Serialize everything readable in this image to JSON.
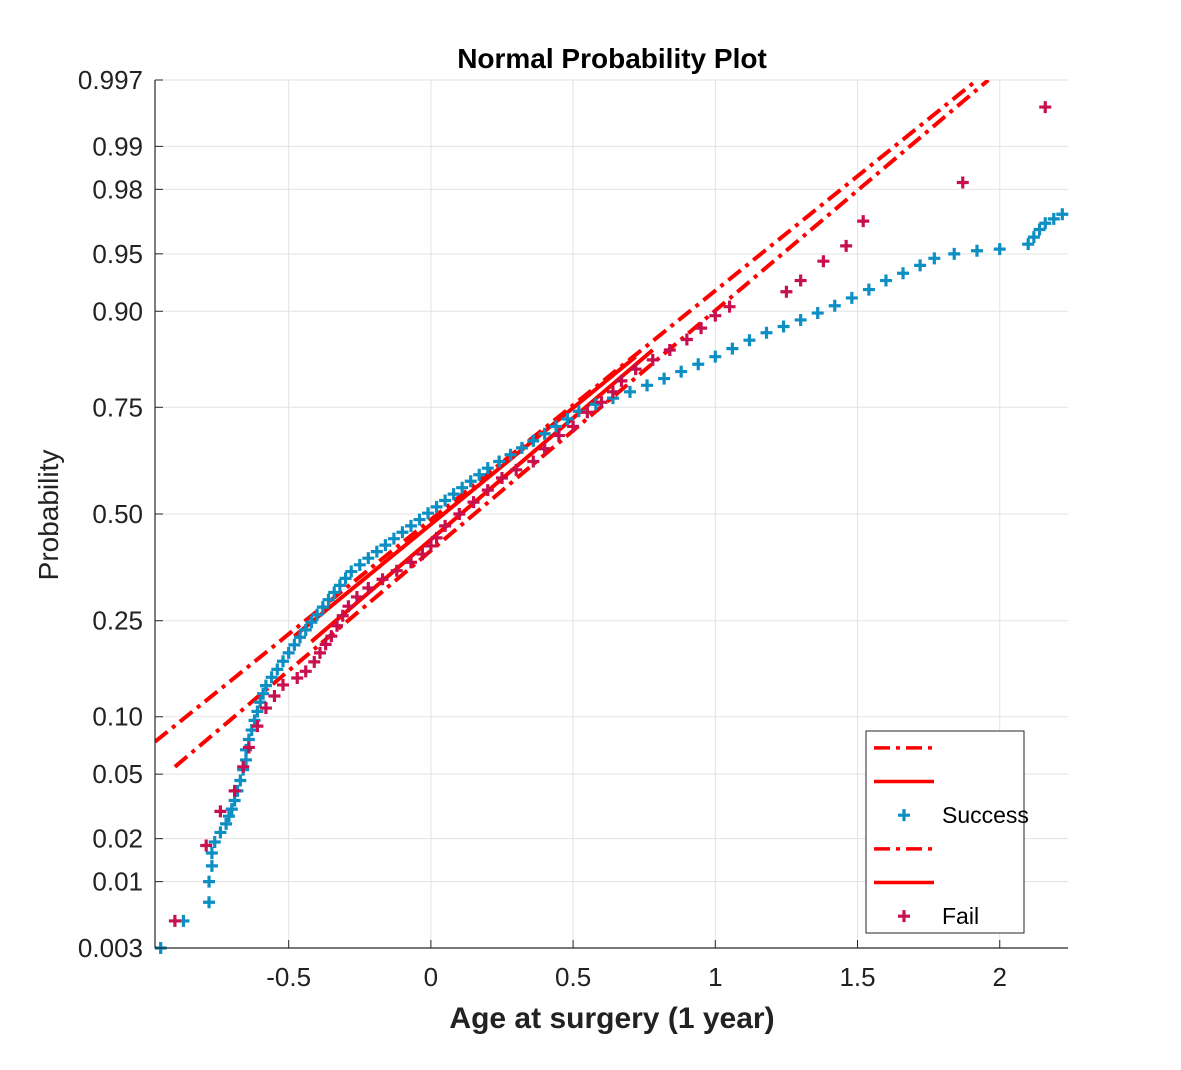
{
  "chart_data": {
    "type": "scatter",
    "title": "Normal Probability Plot",
    "xlabel": "Age at surgery (1 year)",
    "ylabel": "Probability",
    "xlim": [
      -0.97,
      2.24
    ],
    "ylim": [
      0.003,
      0.997
    ],
    "y_scale": "normal-probability",
    "grid": true,
    "legend_position": "bottom-right",
    "x_ticks": [
      -0.5,
      0,
      0.5,
      1,
      1.5,
      2
    ],
    "x_tick_labels": [
      "-0.5",
      "0",
      "0.5",
      "1",
      "1.5",
      "2"
    ],
    "y_ticks": [
      0.003,
      0.01,
      0.02,
      0.05,
      0.1,
      0.25,
      0.5,
      0.75,
      0.9,
      0.95,
      0.98,
      0.99,
      0.997
    ],
    "y_tick_labels": [
      "0.003",
      "0.01",
      "0.02",
      "0.05",
      "0.10",
      "0.25",
      "0.50",
      "0.75",
      "0.90",
      "0.95",
      "0.98",
      "0.99",
      "0.997"
    ],
    "colors": {
      "success": "#0e8fc4",
      "fail": "#c8104f",
      "fit": "#ff0000"
    },
    "series": [
      {
        "name": "Success",
        "marker": "plus",
        "color": "#0e8fc4",
        "points": [
          [
            -0.95,
            0.003
          ],
          [
            -0.87,
            0.005
          ],
          [
            -0.78,
            0.007
          ],
          [
            -0.78,
            0.01
          ],
          [
            -0.77,
            0.013
          ],
          [
            -0.77,
            0.016
          ],
          [
            -0.76,
            0.019
          ],
          [
            -0.74,
            0.022
          ],
          [
            -0.72,
            0.025
          ],
          [
            -0.71,
            0.028
          ],
          [
            -0.7,
            0.031
          ],
          [
            -0.69,
            0.035
          ],
          [
            -0.68,
            0.04
          ],
          [
            -0.67,
            0.046
          ],
          [
            -0.66,
            0.053
          ],
          [
            -0.65,
            0.06
          ],
          [
            -0.65,
            0.068
          ],
          [
            -0.64,
            0.077
          ],
          [
            -0.63,
            0.086
          ],
          [
            -0.62,
            0.096
          ],
          [
            -0.61,
            0.106
          ],
          [
            -0.6,
            0.117
          ],
          [
            -0.59,
            0.128
          ],
          [
            -0.58,
            0.139
          ],
          [
            -0.56,
            0.151
          ],
          [
            -0.54,
            0.163
          ],
          [
            -0.52,
            0.176
          ],
          [
            -0.5,
            0.19
          ],
          [
            -0.48,
            0.204
          ],
          [
            -0.46,
            0.218
          ],
          [
            -0.44,
            0.232
          ],
          [
            -0.42,
            0.247
          ],
          [
            -0.4,
            0.262
          ],
          [
            -0.38,
            0.278
          ],
          [
            -0.36,
            0.294
          ],
          [
            -0.34,
            0.31
          ],
          [
            -0.32,
            0.326
          ],
          [
            -0.3,
            0.342
          ],
          [
            -0.28,
            0.358
          ],
          [
            -0.25,
            0.374
          ],
          [
            -0.22,
            0.39
          ],
          [
            -0.19,
            0.406
          ],
          [
            -0.16,
            0.422
          ],
          [
            -0.13,
            0.438
          ],
          [
            -0.1,
            0.454
          ],
          [
            -0.07,
            0.47
          ],
          [
            -0.04,
            0.486
          ],
          [
            -0.01,
            0.502
          ],
          [
            0.02,
            0.518
          ],
          [
            0.05,
            0.534
          ],
          [
            0.08,
            0.55
          ],
          [
            0.11,
            0.566
          ],
          [
            0.14,
            0.582
          ],
          [
            0.17,
            0.598
          ],
          [
            0.2,
            0.614
          ],
          [
            0.24,
            0.63
          ],
          [
            0.28,
            0.646
          ],
          [
            0.32,
            0.662
          ],
          [
            0.36,
            0.678
          ],
          [
            0.4,
            0.694
          ],
          [
            0.44,
            0.71
          ],
          [
            0.48,
            0.726
          ],
          [
            0.52,
            0.742
          ],
          [
            0.58,
            0.756
          ],
          [
            0.64,
            0.768
          ],
          [
            0.7,
            0.78
          ],
          [
            0.76,
            0.792
          ],
          [
            0.82,
            0.804
          ],
          [
            0.88,
            0.816
          ],
          [
            0.94,
            0.828
          ],
          [
            1.0,
            0.84
          ],
          [
            1.06,
            0.852
          ],
          [
            1.12,
            0.864
          ],
          [
            1.18,
            0.874
          ],
          [
            1.24,
            0.882
          ],
          [
            1.3,
            0.89
          ],
          [
            1.36,
            0.898
          ],
          [
            1.42,
            0.906
          ],
          [
            1.48,
            0.914
          ],
          [
            1.54,
            0.922
          ],
          [
            1.6,
            0.93
          ],
          [
            1.66,
            0.936
          ],
          [
            1.72,
            0.942
          ],
          [
            1.77,
            0.947
          ],
          [
            1.84,
            0.95
          ],
          [
            1.92,
            0.952
          ],
          [
            2.0,
            0.953
          ],
          [
            2.1,
            0.956
          ],
          [
            2.12,
            0.96
          ],
          [
            2.14,
            0.964
          ],
          [
            2.16,
            0.967
          ],
          [
            2.19,
            0.969
          ],
          [
            2.22,
            0.971
          ]
        ]
      },
      {
        "name": "Fail",
        "marker": "plus",
        "color": "#c8104f",
        "points": [
          [
            -0.9,
            0.005
          ],
          [
            -0.79,
            0.018
          ],
          [
            -0.74,
            0.03
          ],
          [
            -0.69,
            0.04
          ],
          [
            -0.66,
            0.055
          ],
          [
            -0.64,
            0.07
          ],
          [
            -0.61,
            0.09
          ],
          [
            -0.58,
            0.11
          ],
          [
            -0.55,
            0.125
          ],
          [
            -0.52,
            0.14
          ],
          [
            -0.47,
            0.15
          ],
          [
            -0.44,
            0.16
          ],
          [
            -0.41,
            0.175
          ],
          [
            -0.39,
            0.19
          ],
          [
            -0.37,
            0.205
          ],
          [
            -0.35,
            0.22
          ],
          [
            -0.33,
            0.24
          ],
          [
            -0.31,
            0.26
          ],
          [
            -0.29,
            0.28
          ],
          [
            -0.26,
            0.3
          ],
          [
            -0.22,
            0.32
          ],
          [
            -0.17,
            0.34
          ],
          [
            -0.12,
            0.36
          ],
          [
            -0.07,
            0.38
          ],
          [
            -0.03,
            0.4
          ],
          [
            0.0,
            0.42
          ],
          [
            0.02,
            0.44
          ],
          [
            0.05,
            0.47
          ],
          [
            0.1,
            0.5
          ],
          [
            0.15,
            0.53
          ],
          [
            0.2,
            0.56
          ],
          [
            0.25,
            0.59
          ],
          [
            0.3,
            0.61
          ],
          [
            0.36,
            0.63
          ],
          [
            0.4,
            0.66
          ],
          [
            0.45,
            0.69
          ],
          [
            0.5,
            0.71
          ],
          [
            0.55,
            0.74
          ],
          [
            0.6,
            0.76
          ],
          [
            0.64,
            0.78
          ],
          [
            0.67,
            0.8
          ],
          [
            0.72,
            0.82
          ],
          [
            0.78,
            0.835
          ],
          [
            0.84,
            0.85
          ],
          [
            0.9,
            0.865
          ],
          [
            0.95,
            0.88
          ],
          [
            1.0,
            0.895
          ],
          [
            1.05,
            0.905
          ],
          [
            1.25,
            0.92
          ],
          [
            1.3,
            0.93
          ],
          [
            1.38,
            0.945
          ],
          [
            1.46,
            0.955
          ],
          [
            1.52,
            0.968
          ],
          [
            1.87,
            0.982
          ],
          [
            2.16,
            0.995
          ]
        ]
      }
    ],
    "fit_lines": [
      {
        "series": "Success",
        "style": "dashdot",
        "x": [
          -0.97,
          1.92
        ],
        "y": [
          0.075,
          0.997
        ]
      },
      {
        "series": "Success",
        "style": "solid",
        "x": [
          -0.48,
          0.72
        ],
        "y": [
          0.22,
          0.84
        ]
      },
      {
        "series": "Fail",
        "style": "dashdot",
        "x": [
          -0.9,
          1.96
        ],
        "y": [
          0.055,
          0.997
        ]
      },
      {
        "series": "Fail",
        "style": "solid",
        "x": [
          -0.42,
          0.78
        ],
        "y": [
          0.21,
          0.85
        ]
      }
    ],
    "legend": [
      {
        "kind": "dashdot",
        "label": ""
      },
      {
        "kind": "solid",
        "label": ""
      },
      {
        "kind": "marker",
        "series": "Success",
        "label": "Success"
      },
      {
        "kind": "dashdot",
        "label": ""
      },
      {
        "kind": "solid",
        "label": ""
      },
      {
        "kind": "marker",
        "series": "Fail",
        "label": "Fail"
      }
    ]
  }
}
